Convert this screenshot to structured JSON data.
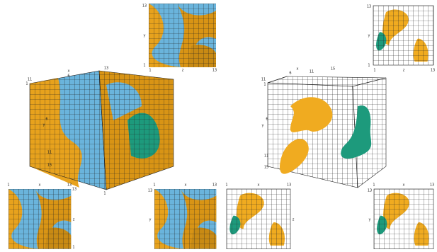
{
  "left": {
    "top_view": {
      "labels": [
        "13",
        "y",
        "1",
        "1",
        "z",
        "13"
      ]
    },
    "cube": {
      "labels": [
        "x",
        "6",
        "11",
        "1",
        "13",
        "6",
        "y",
        "11",
        "15",
        "1",
        "13"
      ]
    },
    "front_view": {
      "labels": [
        "1",
        "x",
        "13",
        "z",
        "1"
      ]
    },
    "side_view": {
      "labels": [
        "1",
        "x",
        "13",
        "13",
        "y"
      ]
    }
  },
  "right": {
    "top_view": {
      "labels": [
        "13",
        "y",
        "1",
        "1",
        "z",
        "13"
      ]
    },
    "cube": {
      "labels": [
        "x",
        "6",
        "11",
        "15",
        "1",
        "11",
        "6",
        "y",
        "11",
        "15"
      ]
    },
    "front_view": {
      "labels": [
        "1",
        "x",
        "13",
        "z"
      ]
    },
    "side_view": {
      "labels": [
        "1",
        "x",
        "13",
        "13",
        "y"
      ]
    }
  }
}
